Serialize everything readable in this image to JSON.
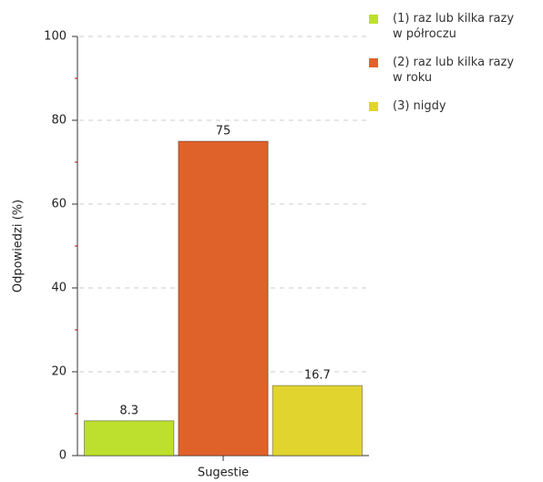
{
  "chart_data": {
    "type": "bar",
    "categories": [
      "Sugestie"
    ],
    "series": [
      {
        "name": "(1) raz lub kilka razy w półroczu",
        "color": "#bde02f",
        "values": [
          8.3
        ]
      },
      {
        "name": "(2) raz lub kilka razy w roku",
        "color": "#e0622b",
        "values": [
          75
        ]
      },
      {
        "name": "(3) nigdy",
        "color": "#e2d42f",
        "values": [
          16.7
        ]
      }
    ],
    "y_label": "Odpowiedzi (%)",
    "ylim": [
      0,
      100
    ],
    "yticks": [
      0,
      20,
      40,
      60,
      80,
      100
    ],
    "grid": true,
    "legend": "right"
  }
}
